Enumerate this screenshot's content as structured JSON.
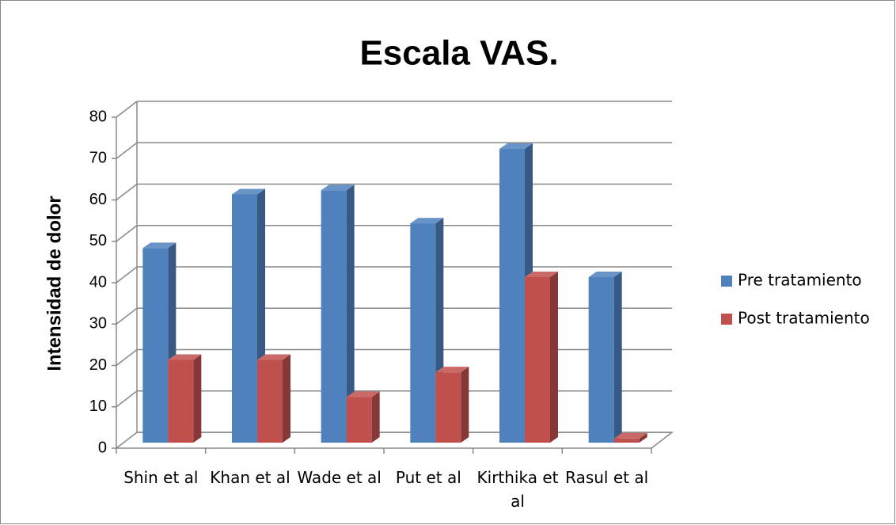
{
  "chart_data": {
    "type": "bar3d",
    "title": "Escala VAS.",
    "y_label": "Intensidad de dolor",
    "categories": [
      "Shin et al",
      "Khan et al",
      "Wade et al",
      "Put et al",
      "Kirthika et al",
      "Rasul et al"
    ],
    "series": [
      {
        "name": "Pre tratamiento",
        "color": "#4f81bd",
        "values": [
          47,
          60,
          61,
          53,
          71,
          40
        ]
      },
      {
        "name": "Post tratamiento",
        "color": "#c0504d",
        "values": [
          20,
          20,
          11,
          17,
          40,
          1
        ]
      }
    ],
    "ylim": [
      0,
      80
    ],
    "yticks": [
      0,
      10,
      20,
      30,
      40,
      50,
      60,
      70,
      80
    ],
    "grid": true,
    "legend": "right"
  }
}
